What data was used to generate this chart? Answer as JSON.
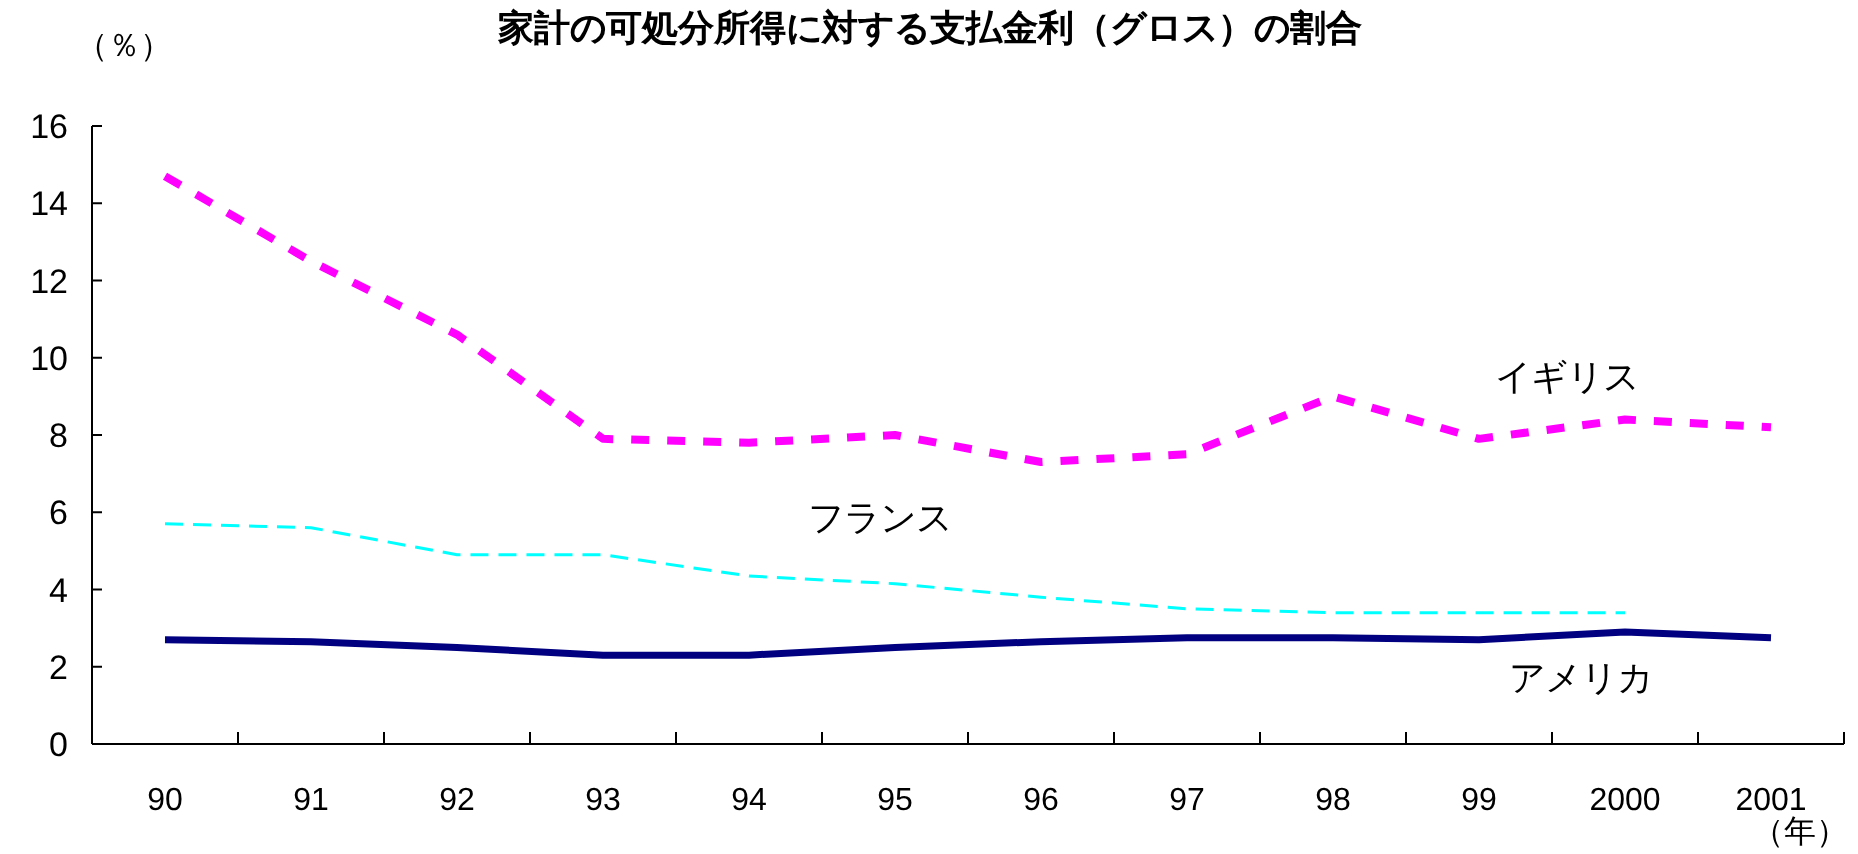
{
  "chart_data": {
    "type": "line",
    "title": "家計の可処分所得に対する支払金利（グロス）の割合",
    "ylabel": "（％）",
    "xlabel": "（年）",
    "categories": [
      "90",
      "91",
      "92",
      "93",
      "94",
      "95",
      "96",
      "97",
      "98",
      "99",
      "2000",
      "2001"
    ],
    "ylim": [
      0,
      16
    ],
    "yticks": [
      0,
      2,
      4,
      6,
      8,
      10,
      12,
      14,
      16
    ],
    "grid": false,
    "legend": false,
    "series": [
      {
        "name": "イギリス",
        "color": "#ff00ff",
        "line_style": "dotted",
        "values": [
          14.7,
          12.5,
          10.6,
          7.9,
          7.8,
          8.0,
          7.3,
          7.5,
          9.0,
          7.9,
          8.4,
          8.2
        ]
      },
      {
        "name": "フランス",
        "color": "#00ffff",
        "line_style": "dashed",
        "values": [
          5.7,
          5.6,
          4.9,
          4.9,
          4.35,
          4.15,
          3.8,
          3.5,
          3.4,
          3.4,
          3.4,
          null
        ]
      },
      {
        "name": "アメリカ",
        "color": "#000080",
        "line_style": "solid",
        "values": [
          2.7,
          2.65,
          2.5,
          2.3,
          2.3,
          2.5,
          2.65,
          2.75,
          2.75,
          2.7,
          2.9,
          2.75
        ]
      }
    ]
  }
}
